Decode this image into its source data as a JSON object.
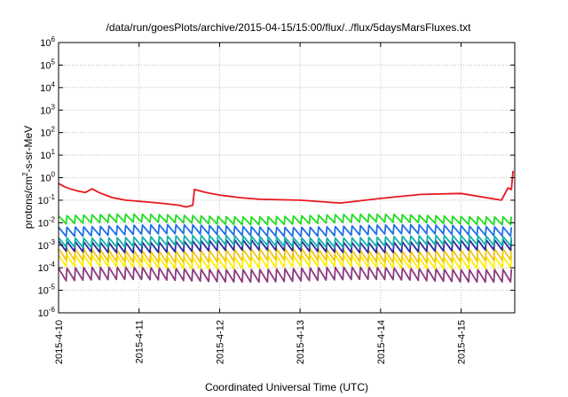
{
  "chart_data": {
    "type": "line",
    "title": "/data/run/goesPlots/archive/2015-04-15/15:00/flux/../flux/5daysMarsFluxes.txt",
    "xlabel": "Coordinated Universal Time (UTC)",
    "ylabel": "protons/cm2-s-sr-MeV",
    "y_scale": "log",
    "ylim": [
      "1e-6",
      "1e6"
    ],
    "y_ticks": [
      {
        "base": "10",
        "exp": "-6"
      },
      {
        "base": "10",
        "exp": "-5"
      },
      {
        "base": "10",
        "exp": "-4"
      },
      {
        "base": "10",
        "exp": "-3"
      },
      {
        "base": "10",
        "exp": "-2"
      },
      {
        "base": "10",
        "exp": "-1"
      },
      {
        "base": "10",
        "exp": "0"
      },
      {
        "base": "10",
        "exp": "1"
      },
      {
        "base": "10",
        "exp": "2"
      },
      {
        "base": "10",
        "exp": "3"
      },
      {
        "base": "10",
        "exp": "4"
      },
      {
        "base": "10",
        "exp": "5"
      },
      {
        "base": "10",
        "exp": "6"
      }
    ],
    "x_ticks": [
      "2015-4-10",
      "2015-4-11",
      "2015-4-12",
      "2015-4-13",
      "2015-4-14",
      "2015-4-15"
    ],
    "xlim": [
      "2015-04-10 00:00",
      "2015-04-15 16:00"
    ],
    "grid": true,
    "legend": "none",
    "series": [
      {
        "color": "#e8181e",
        "baseline": 0.15,
        "sawtooth_amplitude_decades": 0.25,
        "points": [
          [
            "2015-04-10 00:00",
            0.55
          ],
          [
            "2015-04-10 02:00",
            0.38
          ],
          [
            "2015-04-10 04:00",
            0.3
          ],
          [
            "2015-04-10 06:00",
            0.25
          ],
          [
            "2015-04-10 08:00",
            0.22
          ],
          [
            "2015-04-10 10:00",
            0.32
          ],
          [
            "2015-04-10 12:00",
            0.22
          ],
          [
            "2015-04-10 14:00",
            0.17
          ],
          [
            "2015-04-10 16:00",
            0.13
          ],
          [
            "2015-04-10 20:00",
            0.1
          ],
          [
            "2015-04-11 00:00",
            0.09
          ],
          [
            "2015-04-11 06:00",
            0.075
          ],
          [
            "2015-04-11 12:00",
            0.06
          ],
          [
            "2015-04-11 14:00",
            0.05
          ],
          [
            "2015-04-11 16:00",
            0.06
          ],
          [
            "2015-04-11 16:30",
            0.3
          ],
          [
            "2015-04-11 20:00",
            0.22
          ],
          [
            "2015-04-12 00:00",
            0.17
          ],
          [
            "2015-04-12 06:00",
            0.13
          ],
          [
            "2015-04-12 12:00",
            0.11
          ],
          [
            "2015-04-13 00:00",
            0.1
          ],
          [
            "2015-04-13 12:00",
            0.075
          ],
          [
            "2015-04-14 00:00",
            0.12
          ],
          [
            "2015-04-14 12:00",
            0.18
          ],
          [
            "2015-04-15 00:00",
            0.2
          ],
          [
            "2015-04-15 12:00",
            0.1
          ],
          [
            "2015-04-15 14:00",
            0.35
          ],
          [
            "2015-04-15 15:00",
            0.3
          ],
          [
            "2015-04-15 15:30",
            2.0
          ]
        ]
      },
      {
        "color": "#22dd22",
        "baseline": 0.014,
        "sawtooth_amplitude_decades": 0.35
      },
      {
        "color": "#1e6ee8",
        "baseline": 0.0045,
        "sawtooth_amplitude_decades": 0.4
      },
      {
        "color": "#13b0a8",
        "baseline": 0.0015,
        "sawtooth_amplitude_decades": 0.4
      },
      {
        "color": "#2a2aa0",
        "baseline": 0.0009,
        "sawtooth_amplitude_decades": 0.45
      },
      {
        "color": "#f0c419",
        "baseline": 0.00035,
        "sawtooth_amplitude_decades": 0.5
      },
      {
        "color": "#ffee00",
        "baseline": 0.00018,
        "sawtooth_amplitude_decades": 0.5
      },
      {
        "color": "#8b3a7e",
        "baseline": 5e-05,
        "sawtooth_amplitude_decades": 0.55
      }
    ],
    "sawtooth_period_hours": 2.5
  }
}
